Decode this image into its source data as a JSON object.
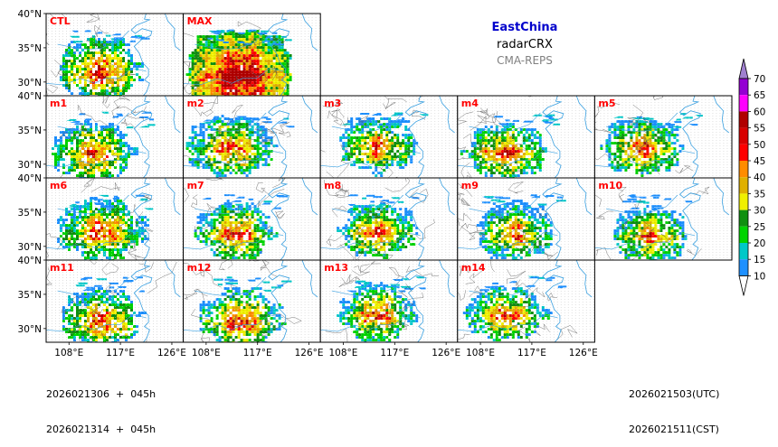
{
  "title": {
    "region": "EastChina",
    "variable": "radarCRX",
    "system": "CMA-REPS"
  },
  "footer": {
    "init_line1": "2026021306  +  045h",
    "init_line2": "2026021314  +  045h",
    "valid_utc": "2026021503(UTC)",
    "valid_cst": "2026021511(CST)"
  },
  "colors": {
    "panel_label": "#ff0000",
    "title": "#0000cc",
    "coast": "#3aa0e0",
    "border": "#555555"
  },
  "chart_data": {
    "type": "heatmap",
    "description_type": "ensemble composite radar reflectivity maps",
    "panels": [
      "CTL",
      "MAX",
      "m1",
      "m2",
      "m3",
      "m4",
      "m5",
      "m6",
      "m7",
      "m8",
      "m9",
      "m10",
      "m11",
      "m12",
      "m13",
      "m14"
    ],
    "lon_ticks": [
      "108°E",
      "117°E",
      "126°E"
    ],
    "lat_ticks": [
      "40°N",
      "35°N",
      "30°N"
    ],
    "lon_range": [
      104,
      128
    ],
    "lat_range": [
      28,
      40
    ],
    "colorbar": {
      "levels": [
        10,
        15,
        20,
        25,
        30,
        35,
        40,
        45,
        50,
        55,
        60,
        65,
        70
      ],
      "labels": [
        "10",
        "15",
        "20",
        "25",
        "30",
        "35",
        "40",
        "45",
        "50",
        "55",
        "60",
        "65",
        "70"
      ],
      "colors": [
        "#1e90ff",
        "#00c8c8",
        "#00d400",
        "#109010",
        "#f0f000",
        "#e0b000",
        "#ff8c00",
        "#ff0000",
        "#d80000",
        "#b00000",
        "#ff00ff",
        "#9400d3",
        "#a080d0",
        "#ffffff"
      ],
      "extend": "both"
    }
  }
}
